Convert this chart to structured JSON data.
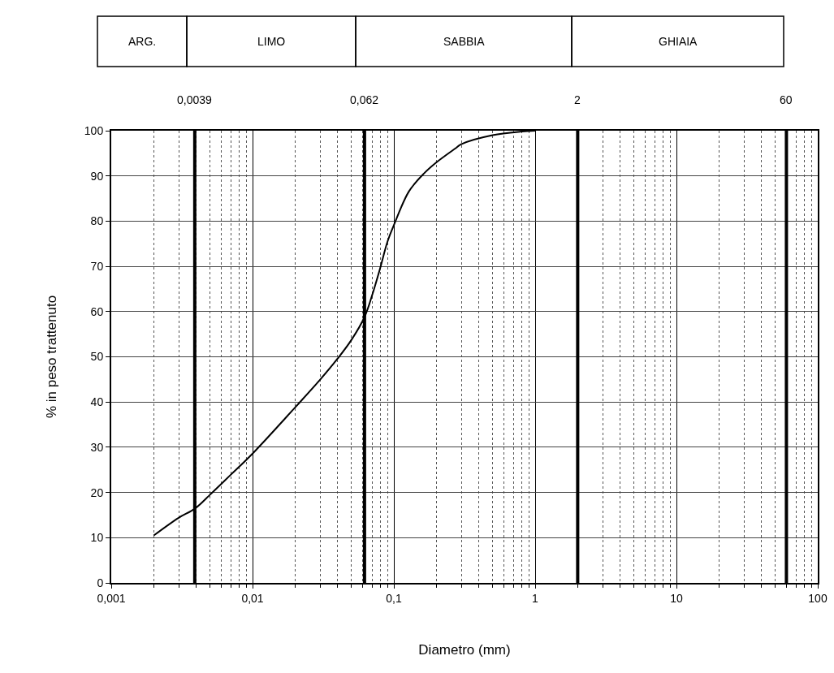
{
  "chart_data": {
    "type": "line",
    "xlabel": "Diametro (mm)",
    "ylabel": "% in peso trattenuto",
    "annotations": [
      "ARG.",
      "LIMO",
      "SABBIA",
      "GHIAIA"
    ],
    "x": [
      0.002,
      0.003,
      0.0039,
      0.005,
      0.007,
      0.01,
      0.02,
      0.03,
      0.04,
      0.05,
      0.062,
      0.07,
      0.08,
      0.09,
      0.1,
      0.128,
      0.164,
      0.2,
      0.27,
      0.3,
      0.5,
      0.8,
      1
    ],
    "series": [
      {
        "color": "#000000",
        "values": [
          10.5,
          14.4,
          16.4,
          19.5,
          23.9,
          28.6,
          38.8,
          44.9,
          49.6,
          53.7,
          58.8,
          63.5,
          69.6,
          75.4,
          79.1,
          86.6,
          90.6,
          93,
          96,
          97,
          99,
          99.8,
          100
        ]
      }
    ],
    "log": "x",
    "xlim": [
      0.001,
      100
    ],
    "xticks": [
      {
        "value": 0.001,
        "label": "0,001"
      },
      {
        "value": 0.01,
        "label": "0,01"
      },
      {
        "value": 0.1,
        "label": "0,1"
      },
      1,
      10,
      100
    ],
    "ylim": [
      0,
      100
    ],
    "yticks": [
      0,
      10,
      20,
      30,
      40,
      50,
      60,
      70,
      80,
      90,
      100
    ],
    "grid": true,
    "marker": "none",
    "line_style": "solid",
    "ref_lines": [
      {
        "axis": "x",
        "value": 0.0039,
        "label": "0,0039",
        "color": "#000000"
      },
      {
        "axis": "x",
        "value": 0.062,
        "label": "0,062",
        "color": "#000000"
      },
      {
        "axis": "x",
        "value": 2,
        "label": "2",
        "color": "#000000"
      },
      {
        "axis": "x",
        "value": 60,
        "label": "60",
        "color": "#000000"
      }
    ]
  }
}
